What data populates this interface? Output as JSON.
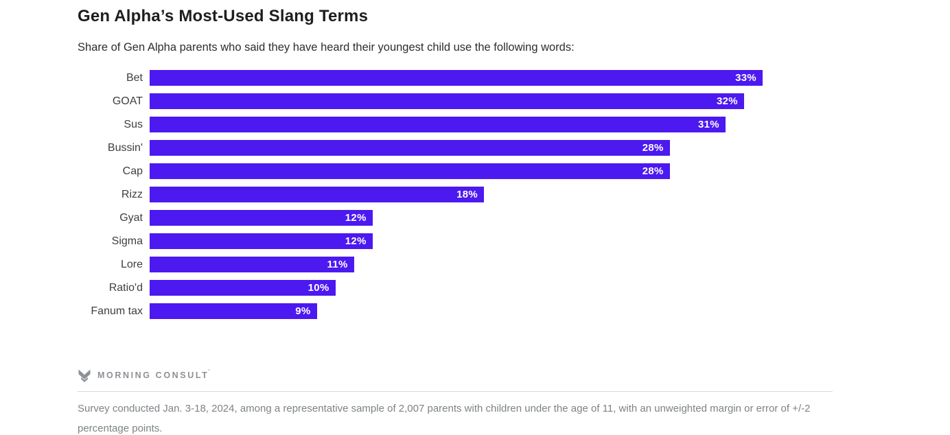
{
  "header": {
    "title": "Gen Alpha’s Most-Used Slang Terms",
    "subtitle": "Share of Gen Alpha parents who said they have heard their youngest child use the following words:"
  },
  "chart_data": {
    "type": "bar",
    "orientation": "horizontal",
    "title": "Gen Alpha’s Most-Used Slang Terms",
    "subtitle": "Share of Gen Alpha parents who said they have heard their youngest child use the following words:",
    "categories": [
      "Bet",
      "GOAT",
      "Sus",
      "Bussin'",
      "Cap",
      "Rizz",
      "Gyat",
      "Sigma",
      "Lore",
      "Ratio'd",
      "Fanum tax"
    ],
    "values": [
      33,
      32,
      31,
      28,
      28,
      18,
      12,
      12,
      11,
      10,
      9
    ],
    "value_suffix": "%",
    "xlabel": "",
    "ylabel": "",
    "xlim": [
      0,
      33
    ],
    "grid": false,
    "legend": "none",
    "bar_color": "#4c19f0",
    "value_label_color": "#ffffff",
    "value_labels_inside": true
  },
  "footer": {
    "logo_text": "MORNING CONSULT",
    "logo_trademark": "'",
    "note": "Survey conducted Jan. 3-18, 2024, among a representative sample of 2,007 parents with children under the age of 11, with an unweighted margin or error of +/-2 percentage points."
  }
}
